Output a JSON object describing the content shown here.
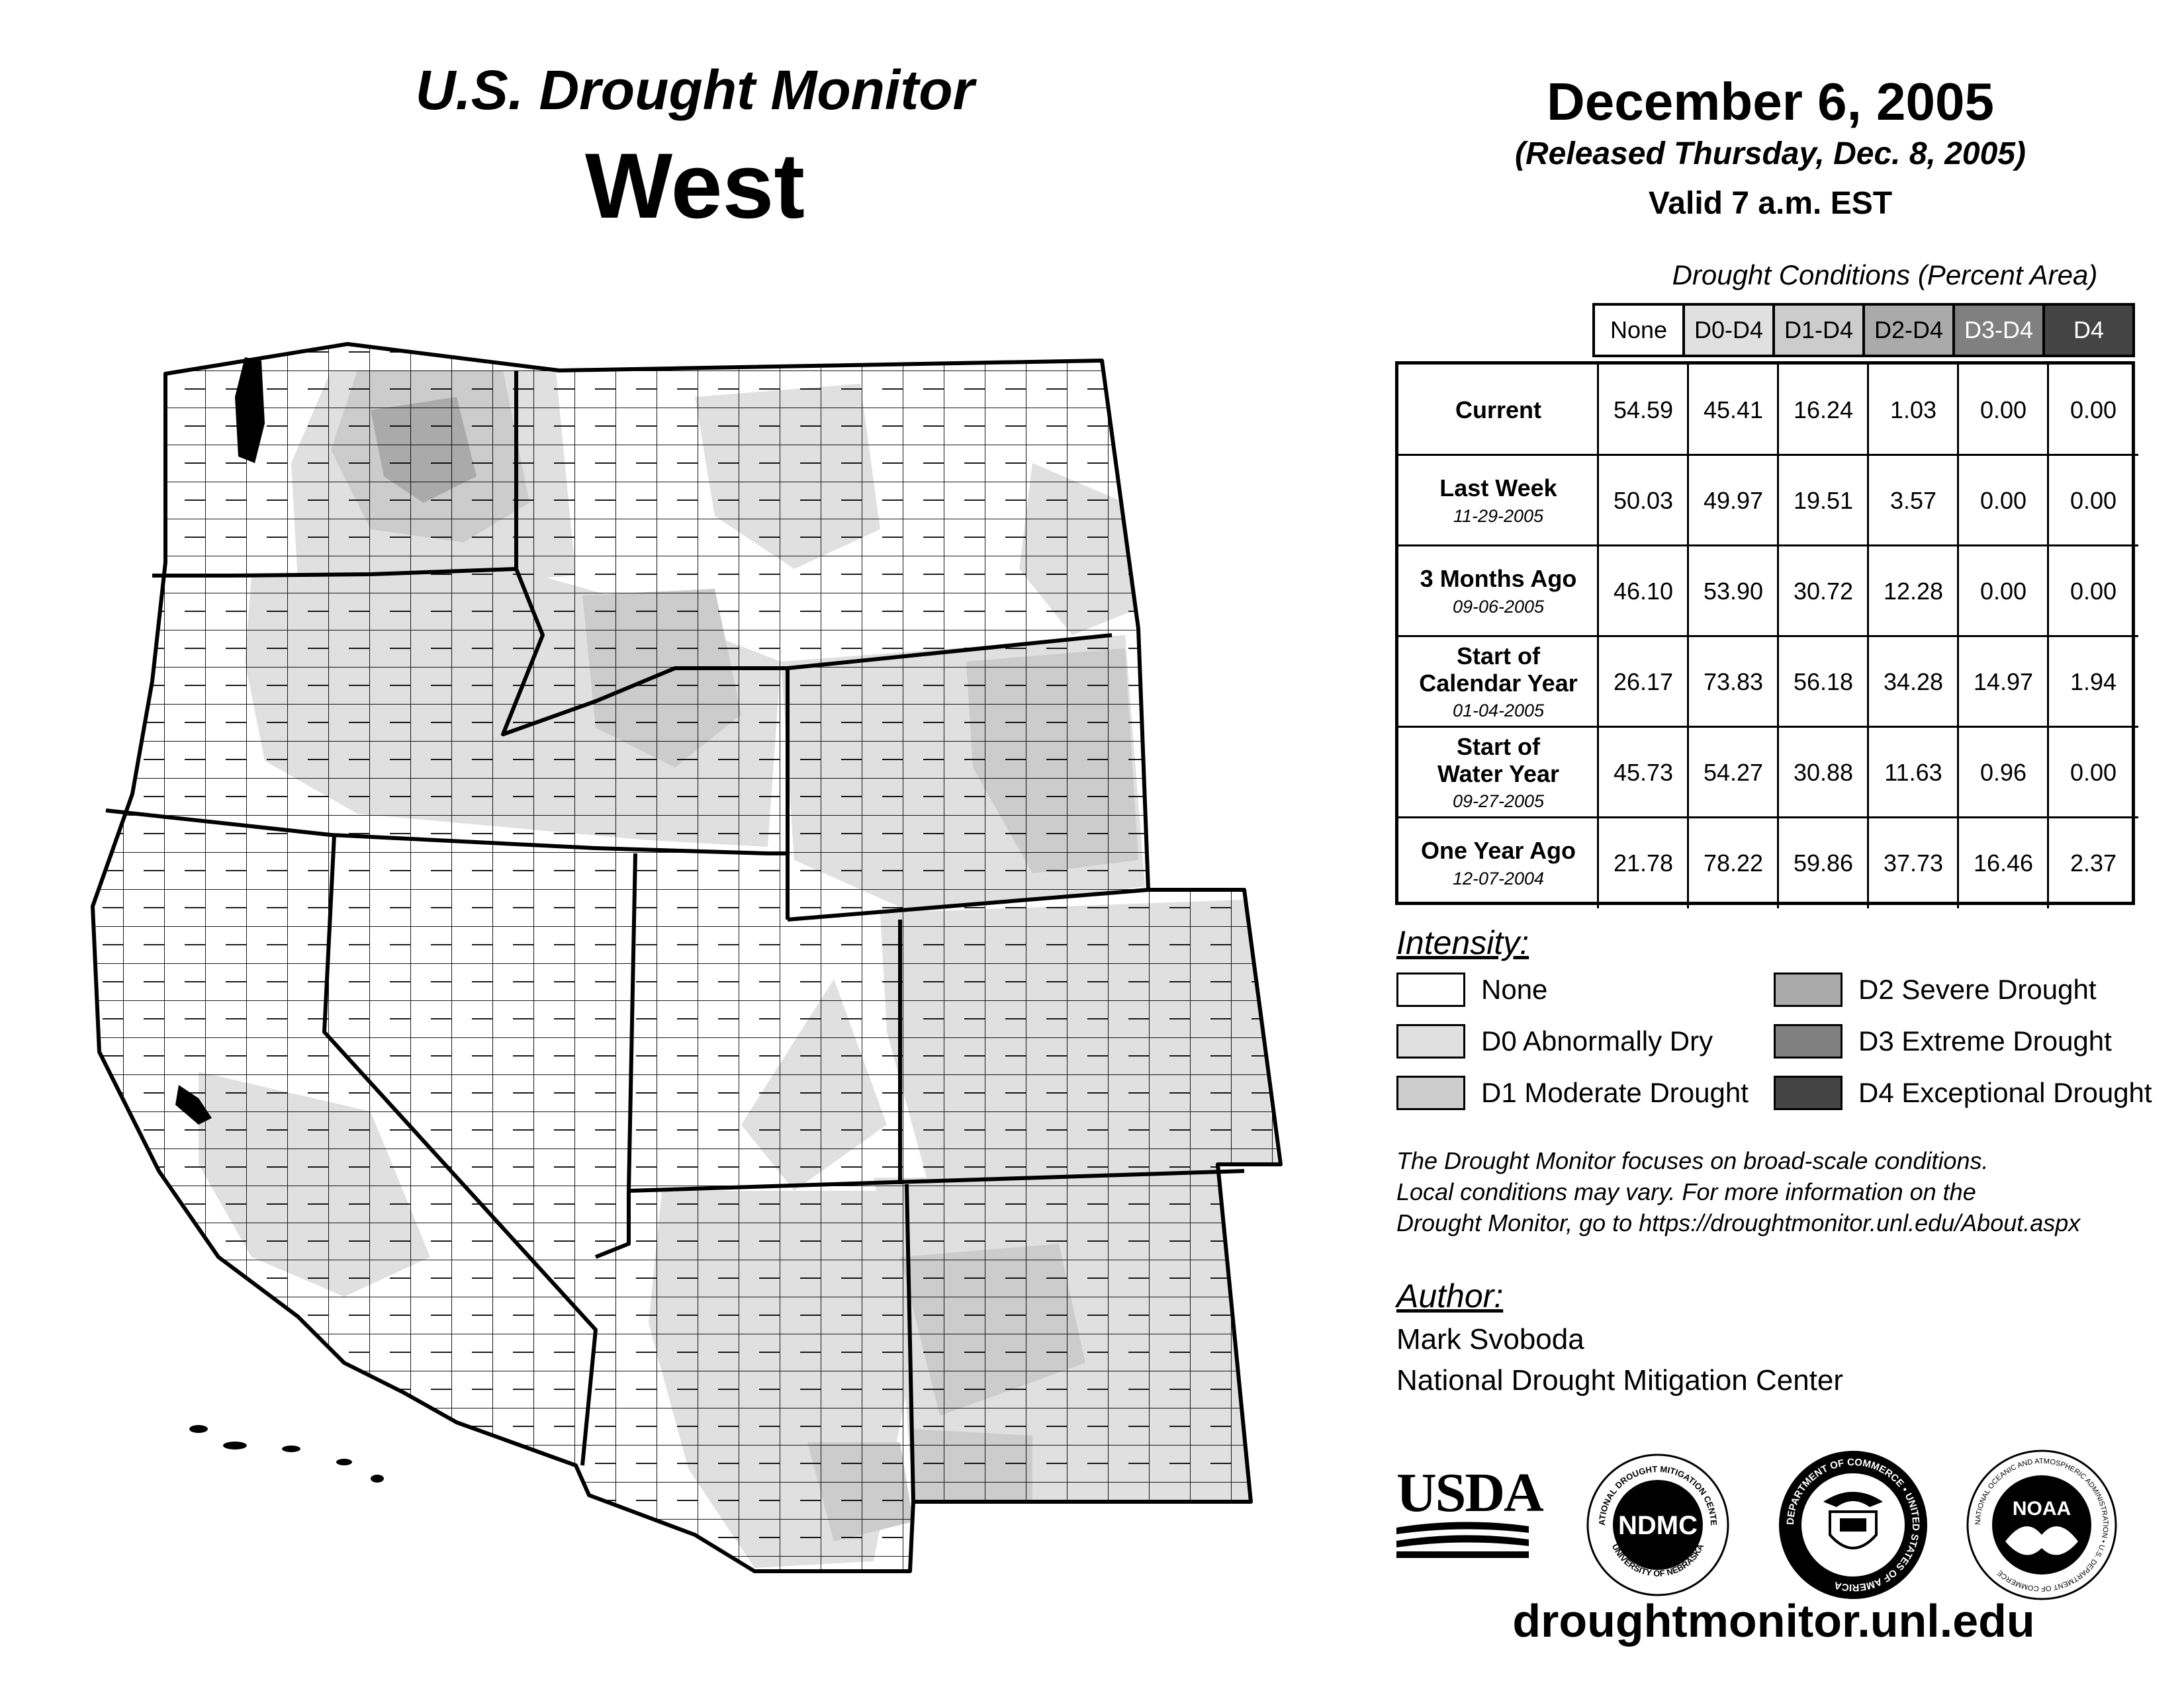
{
  "header": {
    "product": "U.S. Drought Monitor",
    "region": "West",
    "date": "December 6, 2005",
    "released": "(Released Thursday, Dec. 8, 2005)",
    "valid": "Valid 7 a.m. EST"
  },
  "table": {
    "caption": "Drought Conditions (Percent Area)",
    "columns": [
      {
        "label": "None",
        "fill": "#ffffff",
        "text": "#000000"
      },
      {
        "label": "D0-D4",
        "fill": "#e0e0e0",
        "text": "#000000"
      },
      {
        "label": "D1-D4",
        "fill": "#cccccc",
        "text": "#000000"
      },
      {
        "label": "D2-D4",
        "fill": "#aaaaaa",
        "text": "#000000"
      },
      {
        "label": "D3-D4",
        "fill": "#808080",
        "text": "#ffffff"
      },
      {
        "label": "D4",
        "fill": "#444444",
        "text": "#ffffff"
      }
    ],
    "rows": [
      {
        "label": [
          "Current"
        ],
        "date": "",
        "values": [
          "54.59",
          "45.41",
          "16.24",
          "1.03",
          "0.00",
          "0.00"
        ]
      },
      {
        "label": [
          "Last Week"
        ],
        "date": "11-29-2005",
        "values": [
          "50.03",
          "49.97",
          "19.51",
          "3.57",
          "0.00",
          "0.00"
        ]
      },
      {
        "label": [
          "3 Months Ago"
        ],
        "date": "09-06-2005",
        "values": [
          "46.10",
          "53.90",
          "30.72",
          "12.28",
          "0.00",
          "0.00"
        ]
      },
      {
        "label": [
          "Start of",
          "Calendar Year"
        ],
        "date": "01-04-2005",
        "values": [
          "26.17",
          "73.83",
          "56.18",
          "34.28",
          "14.97",
          "1.94"
        ]
      },
      {
        "label": [
          "Start of",
          "Water Year"
        ],
        "date": "09-27-2005",
        "values": [
          "45.73",
          "54.27",
          "30.88",
          "11.63",
          "0.96",
          "0.00"
        ]
      },
      {
        "label": [
          "One Year Ago"
        ],
        "date": "12-07-2004",
        "values": [
          "21.78",
          "78.22",
          "59.86",
          "37.73",
          "16.46",
          "2.37"
        ]
      }
    ]
  },
  "legend": {
    "title": "Intensity:",
    "items": [
      {
        "label": "None",
        "fill": "#ffffff"
      },
      {
        "label": "D0 Abnormally Dry",
        "fill": "#e0e0e0"
      },
      {
        "label": "D1 Moderate Drought",
        "fill": "#cccccc"
      },
      {
        "label": "D2 Severe Drought",
        "fill": "#aaaaaa"
      },
      {
        "label": "D3 Extreme Drought",
        "fill": "#808080"
      },
      {
        "label": "D4 Exceptional Drought",
        "fill": "#444444"
      }
    ]
  },
  "disclaimer": [
    "The Drought Monitor focuses on broad-scale conditions.",
    "Local conditions may vary. For more information on the",
    "Drought Monitor, go to https://droughtmonitor.unl.edu/About.aspx"
  ],
  "author": {
    "title": "Author:",
    "name": "Mark Svoboda",
    "org": "National Drought Mitigation Center"
  },
  "logos": {
    "usda": "USDA",
    "ndmc": "NDMC",
    "ndmc_ring_top": "NATIONAL DROUGHT MITIGATION CENTER",
    "ndmc_ring_bottom": "UNIVERSITY OF NEBRASKA",
    "commerce_ring": "DEPARTMENT OF COMMERCE • UNITED STATES OF AMERICA",
    "noaa": "NOAA",
    "noaa_ring": "NATIONAL OCEANIC AND ATMOSPHERIC ADMINISTRATION • U.S. DEPARTMENT OF COMMERCE"
  },
  "site_url": "droughtmonitor.unl.edu",
  "map": {
    "states": [
      "WA",
      "OR",
      "CA",
      "NV",
      "ID",
      "MT",
      "WY",
      "UT",
      "CO",
      "AZ",
      "NM"
    ],
    "county_line_color": "#000000",
    "state_line_color": "#000000"
  }
}
